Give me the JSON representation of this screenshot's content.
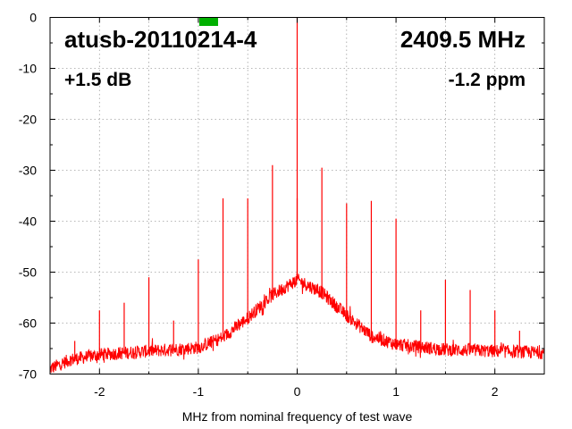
{
  "chart_data": {
    "type": "line",
    "title": "atusb-20110214-4",
    "annotations": {
      "frequency": "2409.5 MHz",
      "gain": "+1.5 dB",
      "ppm": "-1.2 ppm"
    },
    "xlabel": "MHz from nominal frequency of test wave",
    "ylabel": "",
    "xlim": [
      -2.5,
      2.5
    ],
    "ylim": [
      -70,
      0
    ],
    "x_ticks": [
      -2,
      -1,
      0,
      1,
      2
    ],
    "x_tick_labels": [
      "-2",
      "-1",
      "0",
      "1",
      "2"
    ],
    "y_ticks": [
      0,
      -10,
      -20,
      -30,
      -40,
      -50,
      -60,
      -70
    ],
    "y_tick_labels": [
      "0",
      "-10",
      "-20",
      "-30",
      "-40",
      "-50",
      "-60",
      "-70"
    ],
    "grid": true,
    "indicator": {
      "color": "#00b000",
      "x_range": [
        -1.0,
        -0.8
      ]
    },
    "series": [
      {
        "color": "#ff0000",
        "noise_floor": [
          [
            -2.5,
            -69.0
          ],
          [
            -2.3,
            -67.2
          ],
          [
            -2.0,
            -66.2
          ],
          [
            -1.5,
            -65.5
          ],
          [
            -1.0,
            -64.8
          ],
          [
            -0.75,
            -62.8
          ],
          [
            -0.5,
            -59.0
          ],
          [
            -0.25,
            -54.5
          ],
          [
            0.0,
            -51.5
          ],
          [
            0.25,
            -54.0
          ],
          [
            0.5,
            -58.5
          ],
          [
            0.75,
            -62.5
          ],
          [
            1.0,
            -64.2
          ],
          [
            1.5,
            -65.2
          ],
          [
            2.0,
            -65.5
          ],
          [
            2.5,
            -65.8
          ]
        ],
        "spurs": [
          [
            -2.25,
            -63.5
          ],
          [
            -2.0,
            -57.5
          ],
          [
            -1.75,
            -56.0
          ],
          [
            -1.5,
            -51.0
          ],
          [
            -1.25,
            -59.5
          ],
          [
            -1.0,
            -47.5
          ],
          [
            -0.75,
            -35.5
          ],
          [
            -0.5,
            -35.5
          ],
          [
            -0.25,
            -29.0
          ],
          [
            0.0,
            0.0
          ],
          [
            0.0,
            -35.5
          ],
          [
            0.25,
            -29.5
          ],
          [
            0.5,
            -36.5
          ],
          [
            0.75,
            -36.0
          ],
          [
            1.0,
            -39.5
          ],
          [
            1.25,
            -57.5
          ],
          [
            1.5,
            -51.5
          ],
          [
            1.75,
            -53.5
          ],
          [
            2.0,
            -57.5
          ],
          [
            2.25,
            -61.5
          ]
        ]
      }
    ]
  }
}
